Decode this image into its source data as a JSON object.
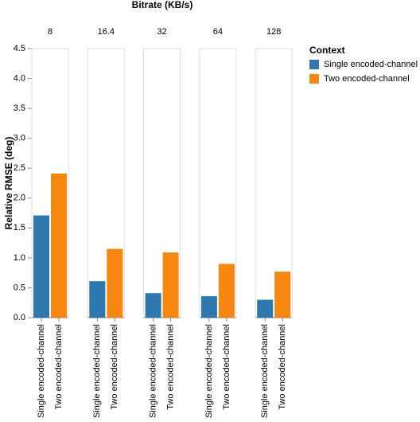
{
  "chart_data": {
    "type": "bar",
    "title": "Bitrate (KB/s)",
    "y_label": "Relative RMSE (deg)",
    "facets": [
      "8",
      "16.4",
      "32",
      "64",
      "128"
    ],
    "legend_title": "Context",
    "legend": "right",
    "series": [
      {
        "name": "Single encoded-channel",
        "color": "#2e78b0",
        "values": [
          1.71,
          0.61,
          0.41,
          0.36,
          0.3
        ]
      },
      {
        "name": "Two encoded-channel",
        "color": "#f7870f",
        "values": [
          2.41,
          1.15,
          1.09,
          0.9,
          0.77
        ]
      }
    ],
    "ylim": [
      0,
      4.5
    ],
    "yticks": [
      {
        "value": 0,
        "label": "0.0"
      },
      {
        "value": 0.5,
        "label": "0.5"
      },
      {
        "value": 1,
        "label": "1.0"
      },
      {
        "value": 1.5,
        "label": "1.5"
      },
      {
        "value": 2,
        "label": "2.0"
      },
      {
        "value": 2.5,
        "label": "2.5"
      },
      {
        "value": 3,
        "label": "3.0"
      },
      {
        "value": 3.5,
        "label": "3.5"
      },
      {
        "value": 4,
        "label": "4.0"
      },
      {
        "value": 4.5,
        "label": "4.5"
      }
    ]
  }
}
